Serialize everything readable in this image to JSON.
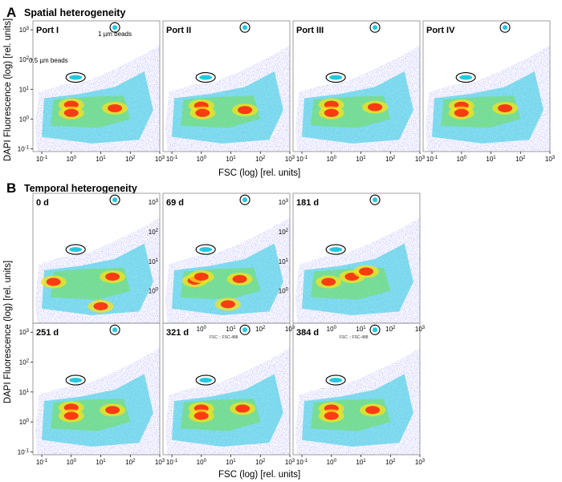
{
  "panel_a": {
    "letter": "A",
    "title": "Spatial heterogeneity",
    "ylabel": "DAPI Fluorescence (log) [rel. units]",
    "xlabel": "FSC (log) [rel. units]",
    "annotations": {
      "large_beads": "1 µm beads",
      "small_beads": "0.5 µm beads"
    }
  },
  "panel_b": {
    "letter": "B",
    "title": "Temporal heterogeneity",
    "ylabel": "DAPI Fluorescence (log) [rel. units]",
    "xlabel": "FSC (log) [rel. units]",
    "overlay_text": "FSC :: FSC-488"
  },
  "colors": {
    "density_low": "#1a1aff",
    "density_mid": "#22c8e0",
    "density_midhigh": "#6fe040",
    "density_high": "#f7e21a",
    "density_peak": "#ff2a10",
    "gate_outline": "#000000",
    "panel_border": "#888888"
  },
  "chart_data": [
    {
      "type": "heatmap",
      "label": "Port I",
      "group": "A",
      "xscale": "log",
      "yscale": "log",
      "xlim": [
        0.05,
        1000
      ],
      "ylim": [
        0.08,
        2000
      ],
      "xticks": [
        "10-1",
        "100",
        "101",
        "102",
        "103"
      ],
      "yticks": [
        "10-1",
        "100",
        "101",
        "102",
        "103"
      ],
      "gates": [
        {
          "name": "0.5 µm beads",
          "x": 1.4,
          "y": 25
        },
        {
          "name": "1 µm beads",
          "x": 30,
          "y": 1200
        }
      ],
      "populations": [
        {
          "x": 1.0,
          "y": 3.0
        },
        {
          "x": 1.0,
          "y": 1.6
        },
        {
          "x": 30,
          "y": 2.3
        }
      ]
    },
    {
      "type": "heatmap",
      "label": "Port II",
      "group": "A",
      "xscale": "log",
      "yscale": "log",
      "xlim": [
        0.05,
        1000
      ],
      "ylim": [
        0.08,
        2000
      ],
      "xticks": [
        "10-1",
        "100",
        "101",
        "102",
        "103"
      ],
      "gates": [
        {
          "x": 1.4,
          "y": 25
        },
        {
          "x": 30,
          "y": 1200
        }
      ],
      "populations": [
        {
          "x": 1.0,
          "y": 2.8
        },
        {
          "x": 1.1,
          "y": 1.6
        },
        {
          "x": 30,
          "y": 2.0
        }
      ]
    },
    {
      "type": "heatmap",
      "label": "Port III",
      "group": "A",
      "xscale": "log",
      "yscale": "log",
      "xlim": [
        0.05,
        1000
      ],
      "ylim": [
        0.08,
        2000
      ],
      "xticks": [
        "10-1",
        "100",
        "101",
        "102",
        "103"
      ],
      "gates": [
        {
          "x": 1.4,
          "y": 25
        },
        {
          "x": 30,
          "y": 1200
        }
      ],
      "populations": [
        {
          "x": 1.0,
          "y": 3.0
        },
        {
          "x": 1.0,
          "y": 1.6
        },
        {
          "x": 30,
          "y": 2.5
        }
      ]
    },
    {
      "type": "heatmap",
      "label": "Port IV",
      "group": "A",
      "xscale": "log",
      "yscale": "log",
      "xlim": [
        0.05,
        1000
      ],
      "ylim": [
        0.08,
        2000
      ],
      "xticks": [
        "10-1",
        "100",
        "101",
        "102",
        "103"
      ],
      "gates": [
        {
          "x": 1.4,
          "y": 25
        },
        {
          "x": 30,
          "y": 1200
        }
      ],
      "populations": [
        {
          "x": 1.0,
          "y": 2.8
        },
        {
          "x": 1.0,
          "y": 1.6
        },
        {
          "x": 30,
          "y": 2.3
        }
      ]
    },
    {
      "type": "heatmap",
      "label": "0 d",
      "group": "B",
      "xscale": "log",
      "yscale": "log",
      "xlim": [
        0.05,
        1000
      ],
      "ylim": [
        0.08,
        2000
      ],
      "yticks_right": [
        "100",
        "101",
        "102",
        "103"
      ],
      "gates": [
        {
          "x": 1.4,
          "y": 25
        },
        {
          "x": 30,
          "y": 1200
        }
      ],
      "populations": [
        {
          "x": 0.25,
          "y": 2.0
        },
        {
          "x": 25,
          "y": 3.0
        },
        {
          "x": 10,
          "y": 0.3
        }
      ]
    },
    {
      "type": "heatmap",
      "label": "69 d",
      "group": "B",
      "xscale": "log",
      "yscale": "log",
      "xlim": [
        0.05,
        1000
      ],
      "ylim": [
        0.08,
        2000
      ],
      "yticks_right": [
        "100",
        "101",
        "102",
        "103"
      ],
      "gates": [
        {
          "x": 1.4,
          "y": 25
        },
        {
          "x": 30,
          "y": 1200
        }
      ],
      "populations": [
        {
          "x": 0.6,
          "y": 2.2
        },
        {
          "x": 1.0,
          "y": 3.0
        },
        {
          "x": 20,
          "y": 2.5
        },
        {
          "x": 8,
          "y": 0.35
        }
      ]
    },
    {
      "type": "heatmap",
      "label": "181 d",
      "group": "B",
      "xscale": "log",
      "yscale": "log",
      "xlim": [
        0.05,
        1000
      ],
      "ylim": [
        0.08,
        2000
      ],
      "gates": [
        {
          "x": 1.4,
          "y": 25
        },
        {
          "x": 30,
          "y": 1200
        }
      ],
      "populations": [
        {
          "x": 0.8,
          "y": 2.0
        },
        {
          "x": 5,
          "y": 3.0
        },
        {
          "x": 15,
          "y": 4.5
        }
      ]
    },
    {
      "type": "heatmap",
      "label": "251 d",
      "group": "B",
      "xscale": "log",
      "yscale": "log",
      "xlim": [
        0.05,
        1000
      ],
      "ylim": [
        0.08,
        2000
      ],
      "xticks": [
        "10-1",
        "100",
        "101",
        "102",
        "103"
      ],
      "yticks": [
        "10-1",
        "100",
        "101",
        "102",
        "103"
      ],
      "gates": [
        {
          "x": 1.4,
          "y": 25
        },
        {
          "x": 30,
          "y": 1200
        }
      ],
      "populations": [
        {
          "x": 1.0,
          "y": 3.0
        },
        {
          "x": 1.0,
          "y": 1.6
        },
        {
          "x": 25,
          "y": 2.5
        }
      ]
    },
    {
      "type": "heatmap",
      "label": "321 d",
      "group": "B",
      "xscale": "log",
      "yscale": "log",
      "xlim": [
        0.05,
        1000
      ],
      "ylim": [
        0.08,
        2000
      ],
      "xticks": [
        "10-1",
        "100",
        "101",
        "102",
        "103"
      ],
      "top_ticks": [
        "100",
        "101",
        "102",
        "103"
      ],
      "gates": [
        {
          "x": 1.4,
          "y": 25
        },
        {
          "x": 30,
          "y": 1200
        }
      ],
      "populations": [
        {
          "x": 1.0,
          "y": 2.8
        },
        {
          "x": 1.0,
          "y": 1.6
        },
        {
          "x": 25,
          "y": 2.8
        }
      ]
    },
    {
      "type": "heatmap",
      "label": "384 d",
      "group": "B",
      "xscale": "log",
      "yscale": "log",
      "xlim": [
        0.05,
        1000
      ],
      "ylim": [
        0.08,
        2000
      ],
      "xticks": [
        "10-1",
        "100",
        "101",
        "102",
        "103"
      ],
      "top_ticks": [
        "100",
        "101",
        "102",
        "103"
      ],
      "gates": [
        {
          "x": 1.4,
          "y": 25
        },
        {
          "x": 30,
          "y": 1200
        }
      ],
      "populations": [
        {
          "x": 1.0,
          "y": 2.8
        },
        {
          "x": 1.0,
          "y": 1.6
        },
        {
          "x": 25,
          "y": 2.5
        }
      ]
    }
  ]
}
